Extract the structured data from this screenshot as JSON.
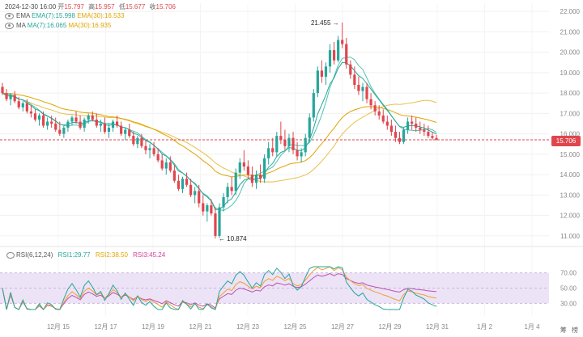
{
  "header": {
    "datetime": "2024-12-30 16:00",
    "open_label": "开",
    "open": "15.797",
    "high_label": "高",
    "high": "15.957",
    "low_label": "低",
    "low": "15.677",
    "close_label": "收",
    "close": "15.706"
  },
  "legend_ema": {
    "name": "EMA",
    "ema7": "EMA(7):15.998",
    "ema30": "EMA(30):16.533"
  },
  "legend_ma": {
    "name": "MA",
    "ma7": "MA(7):16.065",
    "ma30": "MA(30):16.935"
  },
  "legend_rsi": {
    "name": "RSI(6,12,24)",
    "rsi1": "RSI1:29.77",
    "rsi2": "RSI2:38.50",
    "rsi3": "RSI3:45.24"
  },
  "current_price": "15.706",
  "side_buttons": [
    "筹",
    "榜"
  ],
  "colors": {
    "up": "#26a69a",
    "down": "#e0464e",
    "ema7": "#26a69a",
    "ema30": "#e0a400",
    "ma7": "#4fc3b0",
    "ma30": "#e8c04a",
    "rsi1": "#26a69a",
    "rsi2": "#f0a030",
    "rsi3": "#c050b0",
    "rsi_band": "#ece3f6"
  },
  "chart_data": {
    "type": "candlestick",
    "x_ticks": [
      "12月 15",
      "12月 17",
      "12月 19",
      "12月 21",
      "12月 23",
      "12月 25",
      "12月 27",
      "12月 29",
      "12月 31",
      "1月 2",
      "1月 4"
    ],
    "price_axis": {
      "ylim": [
        10.6,
        22.4
      ],
      "ticks": [
        "22.000",
        "21.000",
        "20.000",
        "19.000",
        "18.000",
        "17.000",
        "16.000",
        "15.000",
        "14.000",
        "13.000",
        "12.000",
        "11.000"
      ]
    },
    "annotations": {
      "high": "21.455",
      "low": "10.874"
    },
    "candles": [
      [
        18.3,
        18.5,
        17.9,
        18.0
      ],
      [
        18.0,
        18.2,
        17.6,
        17.7
      ],
      [
        17.7,
        18.0,
        17.4,
        17.9
      ],
      [
        17.9,
        18.1,
        17.5,
        17.6
      ],
      [
        17.6,
        17.8,
        17.2,
        17.3
      ],
      [
        17.3,
        17.6,
        17.1,
        17.5
      ],
      [
        17.5,
        17.7,
        17.0,
        17.1
      ],
      [
        17.1,
        17.4,
        16.8,
        17.0
      ],
      [
        17.0,
        17.2,
        16.6,
        16.7
      ],
      [
        16.7,
        17.0,
        16.4,
        16.9
      ],
      [
        16.9,
        17.1,
        16.3,
        16.4
      ],
      [
        16.4,
        16.8,
        16.2,
        16.6
      ],
      [
        16.6,
        16.9,
        16.3,
        16.5
      ],
      [
        16.5,
        16.8,
        16.1,
        16.2
      ],
      [
        16.2,
        16.6,
        15.9,
        16.0
      ],
      [
        16.0,
        16.4,
        15.8,
        16.3
      ],
      [
        16.3,
        16.7,
        16.1,
        16.6
      ],
      [
        16.6,
        16.9,
        16.4,
        16.8
      ],
      [
        16.8,
        17.1,
        16.5,
        16.6
      ],
      [
        16.6,
        16.9,
        16.2,
        16.3
      ],
      [
        16.3,
        16.8,
        16.1,
        16.7
      ],
      [
        16.7,
        17.0,
        16.5,
        16.9
      ],
      [
        16.9,
        17.1,
        16.6,
        16.7
      ],
      [
        16.7,
        17.0,
        16.3,
        16.4
      ],
      [
        16.4,
        16.7,
        16.1,
        16.5
      ],
      [
        16.5,
        16.8,
        16.0,
        16.1
      ],
      [
        16.1,
        16.5,
        15.8,
        16.3
      ],
      [
        16.3,
        16.7,
        16.1,
        16.6
      ],
      [
        16.6,
        16.9,
        16.3,
        16.4
      ],
      [
        16.4,
        16.6,
        15.9,
        16.0
      ],
      [
        16.0,
        16.3,
        15.7,
        16.2
      ],
      [
        16.2,
        16.5,
        15.8,
        15.9
      ],
      [
        15.9,
        16.1,
        15.4,
        15.5
      ],
      [
        15.5,
        15.9,
        15.3,
        15.8
      ],
      [
        15.8,
        16.0,
        15.3,
        15.4
      ],
      [
        15.4,
        15.7,
        15.0,
        15.2
      ],
      [
        15.2,
        15.5,
        14.8,
        15.3
      ],
      [
        15.3,
        15.6,
        14.9,
        15.0
      ],
      [
        15.0,
        15.3,
        14.6,
        14.7
      ],
      [
        14.7,
        15.0,
        14.2,
        14.3
      ],
      [
        14.3,
        14.8,
        14.0,
        14.6
      ],
      [
        14.6,
        14.9,
        14.1,
        14.2
      ],
      [
        14.2,
        14.5,
        13.6,
        13.7
      ],
      [
        13.7,
        14.0,
        13.2,
        13.3
      ],
      [
        13.3,
        13.9,
        13.1,
        13.8
      ],
      [
        13.8,
        14.1,
        13.4,
        13.5
      ],
      [
        13.5,
        13.8,
        12.9,
        13.0
      ],
      [
        13.0,
        13.4,
        12.6,
        13.2
      ],
      [
        13.2,
        13.5,
        12.4,
        12.6
      ],
      [
        12.6,
        13.0,
        12.0,
        12.2
      ],
      [
        12.2,
        12.6,
        11.7,
        12.5
      ],
      [
        12.5,
        12.8,
        12.0,
        12.1
      ],
      [
        12.1,
        12.4,
        10.874,
        11.0
      ],
      [
        11.0,
        12.6,
        10.9,
        12.4
      ],
      [
        12.4,
        13.1,
        12.2,
        12.9
      ],
      [
        12.9,
        13.6,
        12.6,
        13.4
      ],
      [
        13.4,
        13.9,
        13.0,
        13.2
      ],
      [
        13.2,
        14.3,
        13.0,
        14.1
      ],
      [
        14.1,
        14.8,
        13.8,
        14.6
      ],
      [
        14.6,
        15.2,
        14.2,
        14.4
      ],
      [
        14.4,
        14.7,
        13.8,
        14.0
      ],
      [
        14.0,
        14.4,
        13.4,
        13.6
      ],
      [
        13.6,
        14.2,
        13.3,
        14.0
      ],
      [
        14.0,
        14.5,
        13.6,
        13.8
      ],
      [
        13.8,
        15.0,
        13.6,
        14.8
      ],
      [
        14.8,
        15.6,
        14.5,
        15.3
      ],
      [
        15.3,
        15.8,
        14.9,
        15.1
      ],
      [
        15.1,
        16.1,
        14.9,
        15.9
      ],
      [
        15.9,
        16.6,
        15.5,
        15.7
      ],
      [
        15.7,
        16.2,
        15.2,
        15.4
      ],
      [
        15.4,
        16.0,
        15.1,
        15.8
      ],
      [
        15.8,
        16.1,
        15.0,
        15.2
      ],
      [
        15.2,
        15.6,
        14.7,
        14.9
      ],
      [
        14.9,
        15.3,
        14.6,
        15.1
      ],
      [
        15.1,
        16.0,
        14.9,
        15.8
      ],
      [
        15.8,
        17.0,
        15.6,
        16.8
      ],
      [
        16.8,
        18.2,
        16.6,
        18.0
      ],
      [
        18.0,
        19.3,
        17.8,
        19.1
      ],
      [
        19.1,
        19.6,
        18.5,
        18.8
      ],
      [
        18.8,
        19.5,
        18.4,
        19.3
      ],
      [
        19.3,
        20.4,
        19.0,
        20.1
      ],
      [
        20.1,
        20.5,
        19.4,
        19.6
      ],
      [
        19.6,
        20.8,
        19.5,
        20.6
      ],
      [
        20.6,
        21.455,
        20.2,
        20.4
      ],
      [
        20.4,
        20.7,
        19.2,
        19.4
      ],
      [
        19.4,
        19.6,
        18.7,
        18.9
      ],
      [
        18.9,
        19.3,
        18.2,
        18.4
      ],
      [
        18.4,
        18.8,
        17.9,
        18.1
      ],
      [
        18.1,
        18.5,
        17.6,
        18.3
      ],
      [
        18.3,
        18.5,
        17.5,
        17.7
      ],
      [
        17.7,
        18.0,
        17.2,
        17.4
      ],
      [
        17.4,
        17.6,
        16.9,
        17.1
      ],
      [
        17.1,
        17.4,
        16.7,
        16.9
      ],
      [
        16.9,
        17.2,
        16.5,
        16.6
      ],
      [
        16.6,
        16.9,
        16.2,
        16.4
      ],
      [
        16.4,
        16.7,
        15.9,
        16.1
      ],
      [
        16.1,
        16.4,
        15.6,
        15.8
      ],
      [
        15.8,
        16.1,
        15.5,
        15.6
      ],
      [
        15.6,
        16.3,
        15.5,
        16.2
      ],
      [
        16.2,
        16.8,
        16.0,
        16.6
      ],
      [
        16.6,
        16.9,
        16.2,
        16.5
      ],
      [
        16.5,
        16.8,
        16.1,
        16.3
      ],
      [
        16.3,
        16.6,
        16.0,
        16.2
      ],
      [
        16.2,
        16.5,
        15.9,
        16.1
      ],
      [
        16.1,
        16.4,
        15.8,
        15.9
      ],
      [
        15.9,
        16.1,
        15.7,
        15.797
      ],
      [
        15.797,
        15.957,
        15.677,
        15.706
      ]
    ],
    "rsi_panel": {
      "ylim": [
        22,
        78
      ],
      "levels": [
        "70.00",
        "50.00",
        "30.00"
      ]
    }
  }
}
